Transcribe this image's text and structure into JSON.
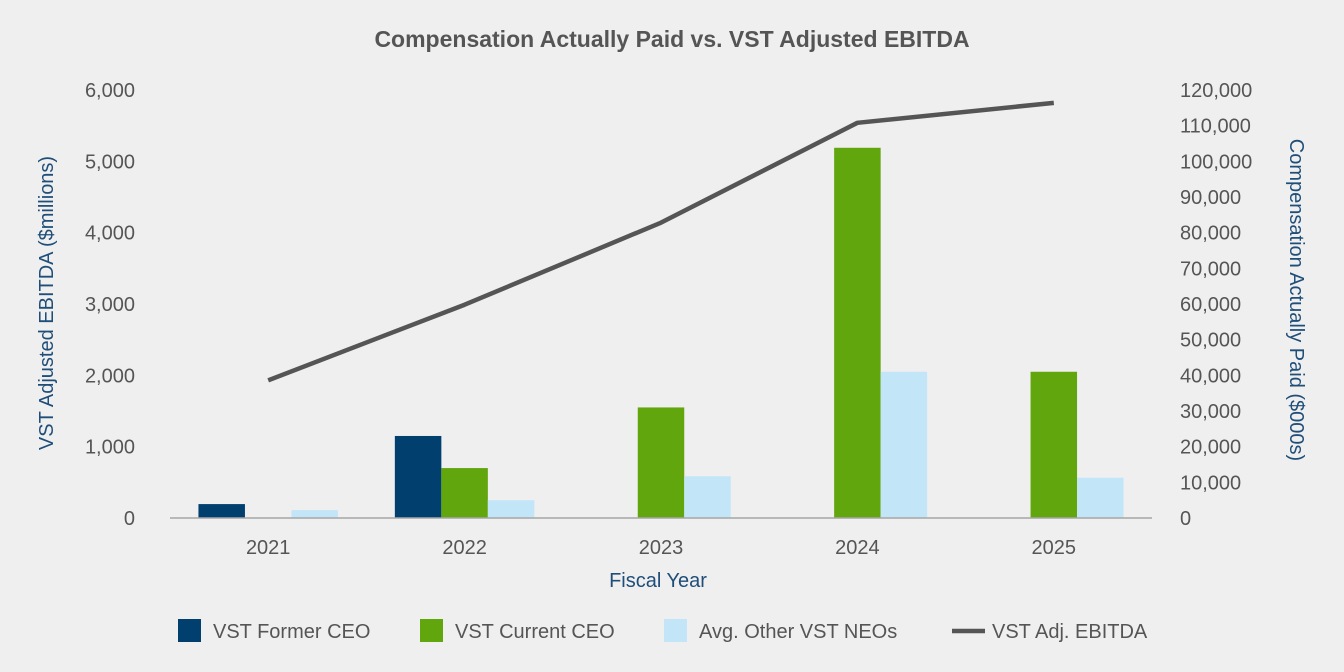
{
  "chart_data": {
    "type": "bar",
    "title": "Compensation Actually Paid vs. VST Adjusted EBITDA",
    "xlabel": "Fiscal Year",
    "ylabel_left": "VST Adjusted EBITDA ($millions)",
    "ylabel_right": "Compensation Actually Paid ($000s)",
    "categories": [
      "2021",
      "2022",
      "2023",
      "2024",
      "2025"
    ],
    "left_axis": {
      "min": 0,
      "max": 6000,
      "ticks": [
        "0",
        "1,000",
        "2,000",
        "3,000",
        "4,000",
        "5,000",
        "6,000"
      ]
    },
    "right_axis": {
      "min": 0,
      "max": 120000,
      "ticks": [
        "0",
        "10,000",
        "20,000",
        "30,000",
        "40,000",
        "50,000",
        "60,000",
        "70,000",
        "80,000",
        "90,000",
        "100,000",
        "110,000",
        "120,000"
      ]
    },
    "series": [
      {
        "name": "VST Former CEO",
        "type": "bar",
        "axis": "right",
        "color": "#003f6e",
        "values": [
          3900,
          23000,
          null,
          null,
          null
        ]
      },
      {
        "name": "VST Current CEO",
        "type": "bar",
        "axis": "right",
        "color": "#62a60d",
        "values": [
          null,
          14000,
          31000,
          103800,
          41000
        ]
      },
      {
        "name": "Avg. Other VST NEOs",
        "type": "bar",
        "axis": "right",
        "color": "#c2e6f8",
        "values": [
          2200,
          5000,
          11700,
          41000,
          11300
        ]
      },
      {
        "name": "VST Adj. EBITDA",
        "type": "line",
        "axis": "left",
        "color": "#555555",
        "values": [
          1930,
          2990,
          4140,
          5540,
          5820
        ]
      }
    ],
    "legend_position": "bottom"
  }
}
